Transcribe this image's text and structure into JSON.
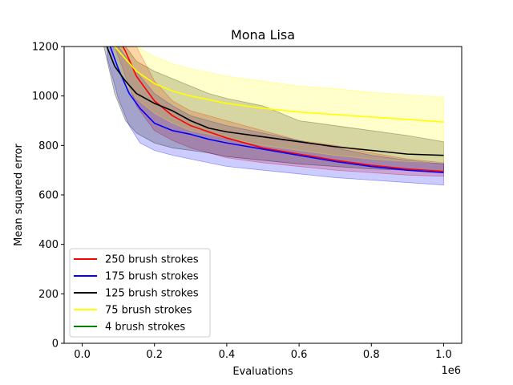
{
  "chart_data": {
    "type": "line",
    "title": "Mona Lisa",
    "xlabel": "Evaluations",
    "ylabel": "Mean squared error",
    "x_offset_label": "1e6",
    "xlim": [
      -0.05,
      1.05
    ],
    "ylim": [
      0,
      1200
    ],
    "xticks": [
      0.0,
      0.2,
      0.4,
      0.6,
      0.8,
      1.0
    ],
    "xtick_labels": [
      "0.0",
      "0.2",
      "0.4",
      "0.6",
      "0.8",
      "1.0"
    ],
    "yticks": [
      0,
      200,
      400,
      600,
      800,
      1000,
      1200
    ],
    "ytick_labels": [
      "0",
      "200",
      "400",
      "600",
      "800",
      "1000",
      "1200"
    ],
    "grid": false,
    "legend_position": "lower-left",
    "series": [
      {
        "name": "250 brush strokes",
        "color": "#ff0000",
        "band_color": "#ff0000",
        "x": [
          0.09,
          0.12,
          0.15,
          0.2,
          0.25,
          0.3,
          0.35,
          0.4,
          0.5,
          0.6,
          0.7,
          0.8,
          0.9,
          1.0
        ],
        "y": [
          1260,
          1180,
          1080,
          980,
          920,
          880,
          855,
          830,
          790,
          765,
          740,
          720,
          705,
          695
        ],
        "lower": [
          1200,
          1080,
          960,
          860,
          820,
          790,
          770,
          750,
          730,
          715,
          700,
          690,
          680,
          675
        ],
        "upper": [
          1300,
          1260,
          1200,
          1060,
          980,
          940,
          920,
          900,
          860,
          820,
          800,
          770,
          745,
          730
        ]
      },
      {
        "name": "175 brush strokes",
        "color": "#0000ff",
        "band_color": "#0000ff",
        "x": [
          0.07,
          0.1,
          0.13,
          0.16,
          0.2,
          0.25,
          0.3,
          0.35,
          0.4,
          0.5,
          0.6,
          0.7,
          0.8,
          0.9,
          1.0
        ],
        "y": [
          1230,
          1110,
          1010,
          950,
          890,
          860,
          845,
          825,
          810,
          785,
          760,
          735,
          715,
          700,
          690
        ],
        "lower": [
          1150,
          990,
          880,
          810,
          780,
          760,
          745,
          730,
          715,
          700,
          685,
          670,
          660,
          650,
          640
        ],
        "upper": [
          1260,
          1200,
          1140,
          1080,
          1010,
          960,
          920,
          900,
          880,
          850,
          820,
          790,
          760,
          740,
          725
        ]
      },
      {
        "name": "125 brush strokes",
        "color": "#000000",
        "band_color": "#000000",
        "x": [
          0.06,
          0.09,
          0.12,
          0.15,
          0.2,
          0.25,
          0.3,
          0.35,
          0.4,
          0.5,
          0.6,
          0.7,
          0.8,
          0.9,
          1.0
        ],
        "y": [
          1230,
          1120,
          1060,
          1010,
          970,
          940,
          900,
          870,
          855,
          835,
          815,
          795,
          780,
          765,
          760
        ],
        "lower": [
          1200,
          1010,
          900,
          850,
          810,
          790,
          780,
          770,
          755,
          740,
          725,
          715,
          705,
          700,
          695
        ],
        "upper": [
          1260,
          1230,
          1200,
          1140,
          1100,
          1070,
          1040,
          1010,
          990,
          960,
          900,
          880,
          860,
          840,
          815
        ]
      },
      {
        "name": "75 brush strokes",
        "color": "#ffff00",
        "band_color": "#ffff00",
        "x": [
          0.09,
          0.12,
          0.15,
          0.2,
          0.25,
          0.3,
          0.4,
          0.5,
          0.6,
          0.7,
          0.8,
          0.9,
          1.0
        ],
        "y": [
          1200,
          1150,
          1100,
          1050,
          1020,
          1000,
          970,
          950,
          935,
          925,
          915,
          905,
          895
        ],
        "lower": [
          1150,
          1050,
          990,
          930,
          890,
          860,
          830,
          800,
          780,
          760,
          745,
          735,
          730
        ],
        "upper": [
          1260,
          1230,
          1200,
          1160,
          1130,
          1110,
          1080,
          1060,
          1040,
          1030,
          1015,
          1005,
          995
        ]
      },
      {
        "name": "4 brush strokes",
        "color": "#008000",
        "band_color": "#008000",
        "x": [],
        "y": [],
        "lower": [],
        "upper": []
      }
    ]
  }
}
